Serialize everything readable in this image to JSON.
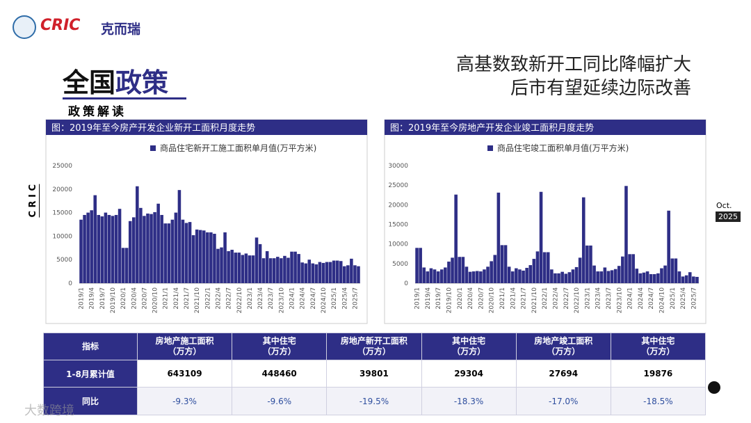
{
  "header": {
    "brand": "CRIC",
    "brand_cn": "克而瑞",
    "title_a": "全国",
    "title_b": "政策",
    "subtitle": "政策解读",
    "headline_1": "高基数致新开工同比降幅扩大",
    "headline_2": "后市有望延续边际改善",
    "side": "C R I C",
    "month": "Oct.",
    "year": "2025",
    "watermark": "大数跨境"
  },
  "chart_data": [
    {
      "type": "bar",
      "title": "图：2019年至今房产开发企业新开工面积月度走势",
      "categories": [
        "2019/1",
        null,
        null,
        "2019/4",
        null,
        null,
        "2019/7",
        null,
        null,
        "2019/10",
        null,
        null,
        "2020/1",
        null,
        null,
        "2020/4",
        null,
        null,
        "2020/7",
        null,
        null,
        "2020/10",
        null,
        null,
        "2021/1",
        null,
        null,
        "2021/4",
        null,
        null,
        "2021/7",
        null,
        null,
        "2021/10",
        null,
        null,
        "2022/1",
        null,
        null,
        "2022/4",
        null,
        null,
        "2022/7",
        null,
        null,
        "2022/10",
        null,
        null,
        "2023/1",
        null,
        null,
        "2023/4",
        null,
        null,
        "2023/7",
        null,
        null,
        "2023/10",
        null,
        null,
        "2024/1",
        null,
        null,
        "2024/4",
        null,
        null,
        "2024/7",
        null,
        null,
        "2024/10",
        null,
        null,
        "2025/1",
        null,
        null,
        "2025/4",
        null,
        null,
        "2025/7",
        null
      ],
      "series": [
        {
          "name": "商品住宅新开工施工面积单月值(万平方米)",
          "color": "#2e2e86",
          "values": [
            13500,
            14500,
            15000,
            15500,
            18700,
            14500,
            14200,
            15000,
            14500,
            14300,
            14500,
            15800,
            7500,
            7500,
            13200,
            14000,
            20600,
            16000,
            14300,
            14800,
            14700,
            15100,
            16900,
            14500,
            12700,
            12700,
            13500,
            15000,
            19800,
            13500,
            12800,
            13000,
            10200,
            11400,
            11300,
            11200,
            10800,
            10800,
            10500,
            7300,
            7600,
            10800,
            6800,
            7100,
            6500,
            6500,
            6000,
            6300,
            5900,
            5900,
            9700,
            8300,
            5300,
            6800,
            5300,
            5300,
            5600,
            5300,
            5800,
            5400,
            6700,
            6700,
            6200,
            4400,
            4200,
            5000,
            4200,
            4000,
            4500,
            4300,
            4500,
            4500,
            4800,
            4800,
            4700,
            3600,
            3800,
            5200,
            3800,
            3600
          ]
        }
      ],
      "ylim": [
        0,
        25000
      ],
      "yticks": [
        0,
        5000,
        10000,
        15000,
        20000,
        25000
      ]
    },
    {
      "type": "bar",
      "title": "图：2019年至今房地产开发企业竣工面积月度走势",
      "categories": [
        "2019/1",
        null,
        null,
        "2019/4",
        null,
        null,
        "2019/7",
        null,
        null,
        "2019/10",
        null,
        null,
        "2020/1",
        null,
        null,
        "2020/4",
        null,
        null,
        "2020/7",
        null,
        null,
        "2020/10",
        null,
        null,
        "2021/1",
        null,
        null,
        "2021/4",
        null,
        null,
        "2021/7",
        null,
        null,
        "2021/10",
        null,
        null,
        "2022/1",
        null,
        null,
        "2022/4",
        null,
        null,
        "2022/7",
        null,
        null,
        "2022/10",
        null,
        null,
        "2023/1",
        null,
        null,
        "2023/4",
        null,
        null,
        "2023/7",
        null,
        null,
        "2023/10",
        null,
        null,
        "2024/1",
        null,
        null,
        "2024/4",
        null,
        null,
        "2024/7",
        null,
        null,
        "2024/10",
        null,
        null,
        "2025/1",
        null,
        null,
        "2025/4",
        null,
        null,
        "2025/7",
        null
      ],
      "series": [
        {
          "name": "商品住宅竣工面积单月值(万平方米)",
          "color": "#2e2e86",
          "values": [
            9000,
            9000,
            4000,
            3000,
            3800,
            3500,
            3000,
            3500,
            4000,
            5500,
            6500,
            22600,
            6700,
            6700,
            4200,
            2900,
            3000,
            3100,
            3000,
            3500,
            4200,
            5600,
            7200,
            23100,
            9700,
            9700,
            4200,
            3000,
            3800,
            3500,
            3200,
            3900,
            4600,
            6200,
            8100,
            23300,
            7900,
            7900,
            3500,
            2500,
            2500,
            2900,
            2400,
            2800,
            3500,
            4100,
            6500,
            21900,
            9600,
            9600,
            4500,
            3000,
            3000,
            4000,
            3100,
            3300,
            3600,
            4400,
            6800,
            24800,
            7400,
            7400,
            3700,
            2500,
            2700,
            3000,
            2300,
            2300,
            2500,
            3800,
            4500,
            18500,
            6300,
            6300,
            3000,
            1700,
            2000,
            2800,
            1700,
            1600
          ]
        }
      ],
      "ylim": [
        0,
        30000
      ],
      "yticks": [
        0,
        5000,
        10000,
        15000,
        20000,
        25000,
        30000
      ]
    }
  ],
  "table": {
    "header": [
      "指标",
      "房地产施工面积\n（万方）",
      "其中住宅\n（万方）",
      "房地产新开工面积\n（万方）",
      "其中住宅\n（万方）",
      "房地产竣工面积\n（万方）",
      "其中住宅\n（万方）"
    ],
    "rows": [
      [
        "1-8月累计值",
        "643109",
        "448460",
        "39801",
        "29304",
        "27694",
        "19876"
      ],
      [
        "同比",
        "-9.3%",
        "-9.6%",
        "-19.5%",
        "-18.3%",
        "-17.0%",
        "-18.5%"
      ]
    ]
  }
}
